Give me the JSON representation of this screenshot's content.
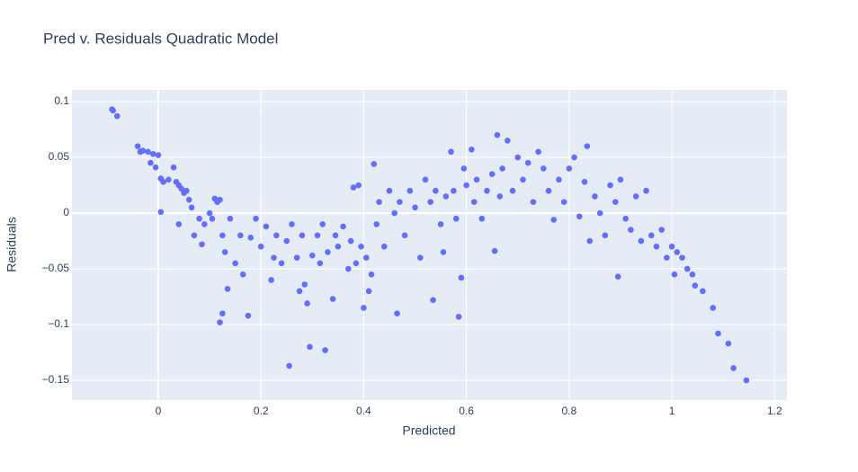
{
  "chart_data": {
    "type": "scatter",
    "title": "Pred v. Residuals Quadratic Model",
    "x_label": "Predicted",
    "y_label": "Residuals",
    "color": "#636efa",
    "xlim": [
      -0.168,
      1.224
    ],
    "ylim": [
      -0.1677,
      0.1105
    ],
    "xticks": [
      0,
      0.2,
      0.4,
      0.6,
      0.8,
      1,
      1.2
    ],
    "yticks": [
      0.1,
      0.05,
      0,
      {
        "value": -0.05,
        "label": "−0.05"
      },
      {
        "value": -0.1,
        "label": "−0.1"
      },
      {
        "value": -0.15,
        "label": "−0.15"
      }
    ],
    "grid": true,
    "x": [
      -0.09,
      -0.088,
      -0.08,
      -0.04,
      -0.035,
      -0.03,
      -0.02,
      -0.01,
      0,
      -0.005,
      -0.015,
      0.005,
      0.01,
      0.02,
      0.03,
      0.035,
      0.04,
      0.045,
      0.05,
      0.055,
      0.06,
      0.065,
      0.07,
      0.08,
      0.085,
      0.09,
      0.1,
      0.105,
      0.11,
      0.115,
      0.12,
      0.125,
      0.13,
      0.135,
      0.14,
      0.15,
      0.16,
      0.165,
      0.175,
      0.12,
      0.125,
      0.005,
      0.04,
      0.18,
      0.19,
      0.2,
      0.21,
      0.22,
      0.225,
      0.23,
      0.24,
      0.25,
      0.255,
      0.26,
      0.27,
      0.275,
      0.28,
      0.285,
      0.29,
      0.295,
      0.3,
      0.31,
      0.315,
      0.32,
      0.325,
      0.33,
      0.34,
      0.345,
      0.35,
      0.36,
      0.37,
      0.375,
      0.38,
      0.385,
      0.39,
      0.395,
      0.4,
      0.405,
      0.41,
      0.415,
      0.42,
      0.425,
      0.43,
      0.44,
      0.45,
      0.46,
      0.465,
      0.47,
      0.48,
      0.49,
      0.5,
      0.51,
      0.52,
      0.53,
      0.535,
      0.54,
      0.55,
      0.555,
      0.56,
      0.57,
      0.575,
      0.58,
      0.585,
      0.59,
      0.595,
      0.6,
      0.61,
      0.615,
      0.62,
      0.63,
      0.64,
      0.65,
      0.655,
      0.66,
      0.665,
      0.67,
      0.68,
      0.69,
      0.7,
      0.71,
      0.72,
      0.73,
      0.74,
      0.75,
      0.76,
      0.77,
      0.78,
      0.79,
      0.8,
      0.81,
      0.82,
      0.83,
      0.835,
      0.84,
      0.85,
      0.86,
      0.87,
      0.88,
      0.89,
      0.895,
      0.9,
      0.91,
      0.92,
      0.93,
      0.94,
      0.95,
      0.96,
      0.97,
      0.98,
      0.99,
      1.0,
      1.005,
      1.01,
      1.02,
      1.03,
      1.04,
      1.045,
      1.06,
      1.08,
      1.09,
      1.11,
      1.12,
      1.145
    ],
    "y": [
      0.093,
      0.092,
      0.087,
      0.06,
      0.055,
      0.056,
      0.055,
      0.053,
      0.052,
      0.041,
      0.045,
      0.031,
      0.028,
      0.03,
      0.041,
      0.028,
      0.025,
      0.022,
      0.018,
      0.02,
      0.012,
      0.005,
      -0.02,
      -0.005,
      -0.028,
      -0.01,
      0.0,
      -0.005,
      0.013,
      0.01,
      0.012,
      -0.02,
      -0.035,
      -0.068,
      -0.005,
      -0.045,
      -0.02,
      -0.055,
      -0.092,
      -0.098,
      -0.09,
      0.001,
      -0.01,
      -0.022,
      -0.005,
      -0.03,
      -0.012,
      -0.06,
      -0.04,
      -0.02,
      -0.045,
      -0.025,
      -0.137,
      -0.01,
      -0.04,
      -0.07,
      -0.02,
      -0.064,
      -0.081,
      -0.12,
      -0.038,
      -0.02,
      -0.045,
      -0.01,
      -0.123,
      -0.035,
      -0.077,
      -0.02,
      -0.03,
      -0.012,
      -0.05,
      -0.025,
      0.023,
      -0.045,
      0.025,
      -0.03,
      -0.085,
      -0.04,
      -0.07,
      -0.055,
      0.044,
      -0.01,
      0.01,
      -0.03,
      0.02,
      0.0,
      -0.09,
      0.01,
      -0.02,
      0.02,
      0.005,
      -0.04,
      0.03,
      0.01,
      -0.078,
      0.02,
      -0.01,
      -0.035,
      0.015,
      0.055,
      0.02,
      -0.005,
      -0.093,
      -0.058,
      0.04,
      0.025,
      0.057,
      0.01,
      0.03,
      -0.005,
      0.02,
      0.035,
      -0.034,
      0.07,
      0.015,
      0.04,
      0.065,
      0.02,
      0.05,
      0.03,
      0.045,
      0.01,
      0.055,
      0.04,
      0.02,
      -0.006,
      0.03,
      0.01,
      0.04,
      0.05,
      -0.003,
      0.028,
      0.06,
      -0.025,
      0.015,
      0.0,
      -0.02,
      0.025,
      0.01,
      -0.057,
      0.03,
      -0.005,
      -0.015,
      0.015,
      -0.025,
      0.02,
      -0.02,
      -0.03,
      -0.015,
      -0.04,
      -0.03,
      -0.055,
      -0.035,
      -0.04,
      -0.05,
      -0.055,
      -0.065,
      -0.07,
      -0.085,
      -0.108,
      -0.117,
      -0.139,
      -0.15
    ]
  }
}
